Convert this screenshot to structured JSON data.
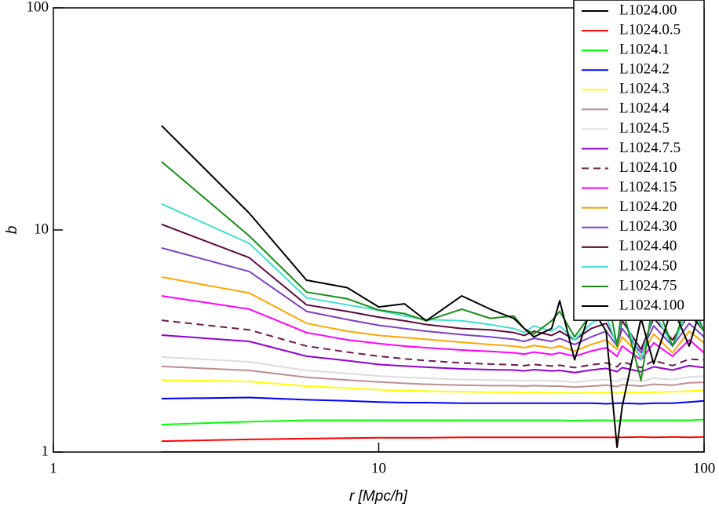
{
  "chart_data": {
    "type": "line",
    "xlabel": "r [Mpc/h]",
    "ylabel": "b",
    "xlog": true,
    "ylog": true,
    "xlim": [
      1,
      100
    ],
    "ylim": [
      1,
      100
    ],
    "xticks": [
      1,
      10,
      100
    ],
    "yticks": [
      1,
      10,
      100
    ],
    "legend": "upper right",
    "x": [
      2.15,
      4,
      6,
      8,
      10,
      12,
      14,
      18,
      22,
      26,
      28,
      30,
      34,
      36,
      40,
      45,
      50,
      54,
      56,
      64,
      70,
      80,
      90,
      100
    ],
    "series": [
      {
        "name": "L1024.00",
        "color": "#000000",
        "values": [
          1,
          1,
          1,
          1,
          1,
          1,
          1,
          1,
          1,
          1,
          1,
          1,
          1,
          1,
          1,
          1,
          1,
          1,
          1,
          1,
          1,
          1,
          1,
          1
        ]
      },
      {
        "name": "L1024.0.5",
        "color": "#ff0000",
        "values": [
          1.12,
          1.14,
          1.15,
          1.155,
          1.16,
          1.16,
          1.16,
          1.165,
          1.165,
          1.165,
          1.165,
          1.165,
          1.165,
          1.165,
          1.165,
          1.165,
          1.165,
          1.165,
          1.165,
          1.17,
          1.165,
          1.17,
          1.165,
          1.17
        ]
      },
      {
        "name": "L1024.1",
        "color": "#00ff00",
        "values": [
          1.33,
          1.37,
          1.39,
          1.39,
          1.39,
          1.39,
          1.39,
          1.39,
          1.39,
          1.39,
          1.39,
          1.39,
          1.39,
          1.39,
          1.385,
          1.39,
          1.39,
          1.385,
          1.39,
          1.39,
          1.39,
          1.39,
          1.39,
          1.4
        ]
      },
      {
        "name": "L1024.2",
        "color": "#0000ff",
        "values": [
          1.74,
          1.76,
          1.72,
          1.7,
          1.68,
          1.67,
          1.67,
          1.66,
          1.66,
          1.66,
          1.66,
          1.66,
          1.66,
          1.66,
          1.66,
          1.66,
          1.65,
          1.66,
          1.66,
          1.65,
          1.66,
          1.66,
          1.68,
          1.7
        ]
      },
      {
        "name": "L1024.3",
        "color": "#ffff00",
        "values": [
          2.11,
          2.08,
          1.98,
          1.94,
          1.91,
          1.89,
          1.88,
          1.87,
          1.86,
          1.86,
          1.85,
          1.86,
          1.85,
          1.85,
          1.84,
          1.85,
          1.85,
          1.84,
          1.86,
          1.85,
          1.86,
          1.87,
          1.88,
          1.9
        ]
      },
      {
        "name": "L1024.4",
        "color": "#bc8f8f",
        "values": [
          2.43,
          2.33,
          2.17,
          2.11,
          2.07,
          2.04,
          2.02,
          2.0,
          1.99,
          1.99,
          1.98,
          1.99,
          1.98,
          1.98,
          1.96,
          1.98,
          2.0,
          1.97,
          2.01,
          1.98,
          2.02,
          2.0,
          2.05,
          2.06
        ]
      },
      {
        "name": "L1024.5",
        "color": "#dcdcdc",
        "values": [
          2.68,
          2.55,
          2.33,
          2.26,
          2.2,
          2.17,
          2.15,
          2.12,
          2.11,
          2.1,
          2.09,
          2.1,
          2.09,
          2.09,
          2.06,
          2.1,
          2.12,
          2.08,
          2.14,
          2.08,
          2.15,
          2.12,
          2.18,
          2.2
        ]
      },
      {
        "name": "L1024.7.5",
        "color": "#9400d3",
        "values": [
          3.36,
          3.15,
          2.7,
          2.58,
          2.48,
          2.44,
          2.41,
          2.37,
          2.35,
          2.34,
          2.32,
          2.35,
          2.32,
          2.33,
          2.28,
          2.34,
          2.38,
          2.3,
          2.4,
          2.3,
          2.42,
          2.34,
          2.45,
          2.4
        ]
      },
      {
        "name": "L1024.10",
        "color": "#6b1a4f",
        "dashed": true,
        "values": [
          3.92,
          3.55,
          3.0,
          2.82,
          2.7,
          2.63,
          2.58,
          2.52,
          2.49,
          2.47,
          2.45,
          2.48,
          2.44,
          2.46,
          2.4,
          2.47,
          2.52,
          2.42,
          2.55,
          2.4,
          2.58,
          2.45,
          2.62,
          2.6
        ]
      },
      {
        "name": "L1024.15",
        "color": "#ff00ff",
        "values": [
          5.05,
          4.4,
          3.45,
          3.2,
          3.08,
          3.0,
          2.95,
          2.88,
          2.84,
          2.8,
          2.76,
          2.82,
          2.75,
          2.8,
          2.7,
          2.85,
          2.95,
          2.7,
          3.0,
          2.6,
          3.1,
          2.7,
          3.2,
          2.8
        ]
      },
      {
        "name": "L1024.20",
        "color": "#ffa500",
        "values": [
          6.14,
          5.2,
          3.8,
          3.5,
          3.35,
          3.28,
          3.22,
          3.12,
          3.05,
          3.0,
          2.95,
          3.02,
          2.94,
          3.0,
          2.85,
          3.05,
          3.2,
          2.9,
          3.3,
          2.7,
          3.4,
          2.8,
          3.5,
          3.1
        ]
      },
      {
        "name": "L1024.30",
        "color": "#7b3fc8",
        "values": [
          8.3,
          6.5,
          4.3,
          3.95,
          3.72,
          3.6,
          3.5,
          3.38,
          3.3,
          3.22,
          3.15,
          3.25,
          3.15,
          3.25,
          3.05,
          3.3,
          3.5,
          3.0,
          3.6,
          2.8,
          3.7,
          3.0,
          3.8,
          3.3
        ]
      },
      {
        "name": "L1024.40",
        "color": "#5c0a3e",
        "values": [
          10.6,
          7.5,
          4.6,
          4.3,
          4.05,
          3.9,
          3.75,
          3.6,
          3.55,
          3.45,
          3.35,
          3.5,
          3.35,
          3.5,
          3.2,
          3.6,
          3.8,
          3.1,
          3.9,
          2.9,
          4.0,
          3.2,
          4.2,
          3.5
        ]
      },
      {
        "name": "L1024.50",
        "color": "#40e0d0",
        "values": [
          13.1,
          8.7,
          4.95,
          4.6,
          4.35,
          4.1,
          3.95,
          3.9,
          3.75,
          3.6,
          3.45,
          3.7,
          3.5,
          3.7,
          3.2,
          3.8,
          4.1,
          3.0,
          4.2,
          2.6,
          4.3,
          3.0,
          4.5,
          3.5
        ]
      },
      {
        "name": "L1024.75",
        "color": "#188f18",
        "values": [
          20.3,
          9.4,
          5.25,
          4.9,
          4.36,
          4.2,
          3.9,
          4.4,
          4.0,
          4.1,
          3.6,
          3.4,
          3.9,
          4.3,
          3.3,
          4.2,
          5.5,
          3.0,
          4.5,
          2.1,
          5.0,
          3.0,
          5.0,
          3.5
        ]
      },
      {
        "name": "L1024.100",
        "color": "#000000",
        "values": [
          29.5,
          11.9,
          5.94,
          5.5,
          4.5,
          4.65,
          3.9,
          5.05,
          4.4,
          4.0,
          3.6,
          3.3,
          3.6,
          4.8,
          2.6,
          4.5,
          3.5,
          1.05,
          1.6,
          4.0,
          2.5,
          4.5,
          3.0,
          5.0
        ]
      }
    ]
  }
}
